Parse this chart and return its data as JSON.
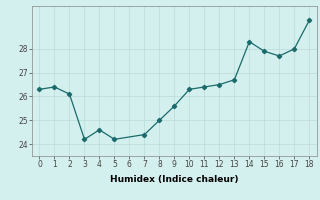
{
  "title": "",
  "xlabel": "Humidex (Indice chaleur)",
  "background_color": "#d4f0ee",
  "line_color": "#1a6b6b",
  "grid_color": "#b8dbd8",
  "x": [
    0,
    1,
    2,
    3,
    4,
    5,
    7,
    8,
    9,
    10,
    11,
    12,
    13,
    14,
    15,
    16,
    17,
    18
  ],
  "y": [
    26.3,
    26.4,
    26.1,
    24.2,
    24.6,
    24.2,
    24.4,
    25.0,
    25.6,
    26.3,
    26.4,
    26.5,
    26.7,
    28.3,
    27.9,
    27.7,
    28.0,
    29.2
  ],
  "ylim": [
    23.5,
    29.8
  ],
  "xlim": [
    -0.5,
    18.5
  ],
  "yticks": [
    24,
    25,
    26,
    27,
    28
  ],
  "axis_fontsize": 6.5,
  "tick_fontsize": 5.5
}
